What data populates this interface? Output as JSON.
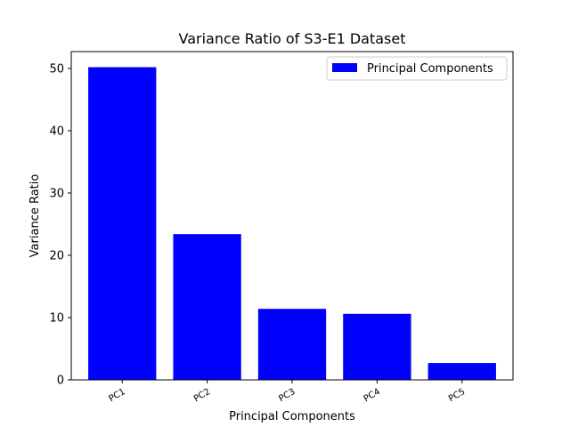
{
  "chart_data": {
    "type": "bar",
    "title": "Variance Ratio of S3-E1 Dataset",
    "xlabel": "Principal Components",
    "ylabel": "Variance Ratio",
    "categories": [
      "PC1",
      "PC2",
      "PC3",
      "PC4",
      "PC5"
    ],
    "series": [
      {
        "name": "Principal Components",
        "values": [
          50.2,
          23.4,
          11.4,
          10.6,
          2.7
        ],
        "color": "#0000ff"
      }
    ],
    "ylim": [
      0,
      52.7
    ],
    "yticks": [
      0,
      10,
      20,
      30,
      40,
      50
    ],
    "grid": false,
    "legend_position": "top-right",
    "xtick_rotation": 30
  }
}
